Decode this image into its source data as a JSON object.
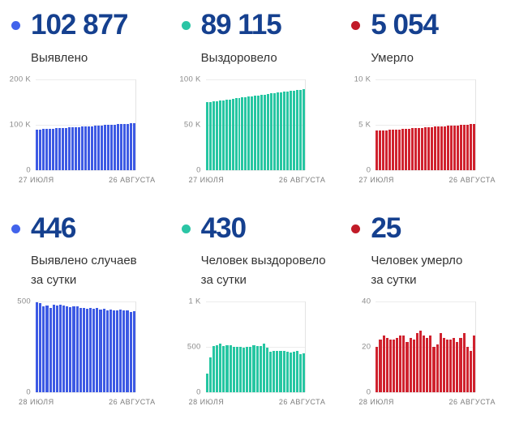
{
  "theme": {
    "value_color": "#15408F",
    "label_color": "#333333",
    "axis_text_color": "#7e7e7e",
    "gridline_color": "#ececec",
    "blue": "#3D5AE4",
    "teal": "#26C6A2",
    "red": "#D0222E"
  },
  "cards": [
    {
      "value": "102 877",
      "label": "Выявлено",
      "color": "#3D5AE4",
      "dot_color": "#4263EB"
    },
    {
      "value": "89 115",
      "label": "Выздоровело",
      "color": "#26C6A2",
      "dot_color": "#2BC5A5"
    },
    {
      "value": "5 054",
      "label": "Умерло",
      "color": "#D0222E",
      "dot_color": "#C11B28"
    },
    {
      "value": "446",
      "label": "Выявлено случаев\nза сутки",
      "color": "#3D5AE4",
      "dot_color": "#4263EB"
    },
    {
      "value": "430",
      "label": "Человек выздоровело\nза сутки",
      "color": "#26C6A2",
      "dot_color": "#2BC5A5"
    },
    {
      "value": "25",
      "label": "Человек умерло\nза сутки",
      "color": "#D0222E",
      "dot_color": "#C11B28"
    }
  ],
  "chart_data": [
    {
      "type": "bar",
      "title": "Выявлено (всего)",
      "color": "#3D5AE4",
      "ylim": [
        0,
        200000
      ],
      "yticks": [
        {
          "label": "200 K",
          "value": 200000
        },
        {
          "label": "100 K",
          "value": 100000
        },
        {
          "label": "0",
          "value": 0
        }
      ],
      "xlabels": [
        "27 ИЮЛЯ",
        "26 АВГУСТА"
      ],
      "values": [
        89000,
        89463,
        89926,
        90388,
        90851,
        91314,
        91777,
        92240,
        92702,
        93165,
        93628,
        94091,
        94554,
        95016,
        95479,
        95942,
        96405,
        96868,
        97330,
        97793,
        98256,
        98719,
        99182,
        99644,
        100107,
        100570,
        101033,
        101496,
        101958,
        102421,
        102877
      ]
    },
    {
      "type": "bar",
      "title": "Выздоровело (всего)",
      "color": "#26C6A2",
      "ylim": [
        0,
        100000
      ],
      "yticks": [
        {
          "label": "100 K",
          "value": 100000
        },
        {
          "label": "50 K",
          "value": 50000
        },
        {
          "label": "0",
          "value": 0
        }
      ],
      "xlabels": [
        "27 ИЮЛЯ",
        "26 АВГУСТА"
      ],
      "values": [
        74500,
        74987,
        75474,
        75961,
        76448,
        76935,
        77422,
        77909,
        78396,
        78883,
        79370,
        79857,
        80344,
        80831,
        81318,
        81805,
        82292,
        82779,
        83266,
        83753,
        84240,
        84727,
        85214,
        85701,
        86188,
        86675,
        87162,
        87649,
        88136,
        88623,
        89115
      ]
    },
    {
      "type": "bar",
      "title": "Умерло (всего)",
      "color": "#D0222E",
      "ylim": [
        0,
        10000
      ],
      "yticks": [
        {
          "label": "10 K",
          "value": 10000
        },
        {
          "label": "5 K",
          "value": 5000
        },
        {
          "label": "0",
          "value": 0
        }
      ],
      "xlabels": [
        "27 ИЮЛЯ",
        "26 АВГУСТА"
      ],
      "values": [
        4310,
        4335,
        4360,
        4384,
        4409,
        4434,
        4459,
        4484,
        4508,
        4533,
        4558,
        4583,
        4608,
        4632,
        4657,
        4682,
        4707,
        4732,
        4756,
        4781,
        4806,
        4831,
        4856,
        4880,
        4905,
        4930,
        4955,
        4980,
        5004,
        5029,
        5054
      ]
    },
    {
      "type": "bar",
      "title": "Выявлено случаев за сутки",
      "color": "#3D5AE4",
      "ylim": [
        0,
        500
      ],
      "yticks": [
        {
          "label": "500",
          "value": 500
        },
        {
          "label": "0",
          "value": 0
        }
      ],
      "xlabels": [
        "28 ИЮЛЯ",
        "26 АВГУСТА"
      ],
      "values": [
        493,
        490,
        472,
        478,
        465,
        480,
        478,
        480,
        476,
        470,
        468,
        472,
        470,
        465,
        462,
        460,
        465,
        458,
        462,
        455,
        458,
        452,
        455,
        450,
        452,
        455,
        448,
        450,
        443,
        446
      ]
    },
    {
      "type": "bar",
      "title": "Человек выздоровело за сутки",
      "color": "#26C6A2",
      "ylim": [
        0,
        1000
      ],
      "yticks": [
        {
          "label": "1 K",
          "value": 1000
        },
        {
          "label": "500",
          "value": 500
        },
        {
          "label": "0",
          "value": 0
        }
      ],
      "xlabels": [
        "28 ИЮЛЯ",
        "26 АВГУСТА"
      ],
      "values": [
        205,
        380,
        505,
        515,
        530,
        510,
        520,
        515,
        495,
        500,
        495,
        490,
        495,
        500,
        520,
        505,
        510,
        530,
        490,
        445,
        450,
        455,
        450,
        450,
        445,
        435,
        440,
        450,
        420,
        430
      ]
    },
    {
      "type": "bar",
      "title": "Человек умерло за сутки",
      "color": "#D0222E",
      "ylim": [
        0,
        40
      ],
      "yticks": [
        {
          "label": "40",
          "value": 40
        },
        {
          "label": "20",
          "value": 20
        },
        {
          "label": "0",
          "value": 0
        }
      ],
      "xlabels": [
        "28 ИЮЛЯ",
        "26 АВГУСТА"
      ],
      "values": [
        20,
        23,
        25,
        24,
        23,
        23,
        24,
        25,
        25,
        22,
        24,
        23,
        26,
        27,
        25,
        24,
        25,
        20,
        21,
        26,
        24,
        23,
        23,
        24,
        22,
        24,
        26,
        20,
        18,
        25
      ]
    }
  ]
}
